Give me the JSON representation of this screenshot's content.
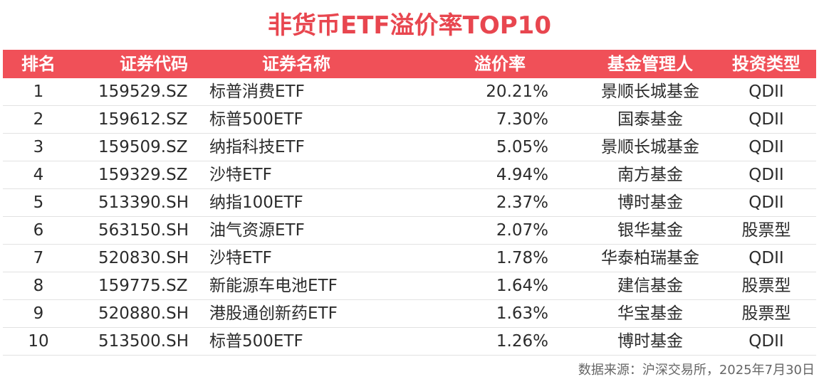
{
  "title": "非货币ETF溢价率TOP10",
  "headers": {
    "rank": "排名",
    "code": "证券代码",
    "name": "证券名称",
    "premium": "溢价率",
    "manager": "基金管理人",
    "type": "投资类型"
  },
  "rows": [
    {
      "rank": "1",
      "code": "159529.SZ",
      "name": "标普消费ETF",
      "premium": "20.21%",
      "manager": "景顺长城基金",
      "type": "QDII"
    },
    {
      "rank": "2",
      "code": "159612.SZ",
      "name": "标普500ETF",
      "premium": "7.30%",
      "manager": "国泰基金",
      "type": "QDII"
    },
    {
      "rank": "3",
      "code": "159509.SZ",
      "name": "纳指科技ETF",
      "premium": "5.05%",
      "manager": "景顺长城基金",
      "type": "QDII"
    },
    {
      "rank": "4",
      "code": "159329.SZ",
      "name": "沙特ETF",
      "premium": "4.94%",
      "manager": "南方基金",
      "type": "QDII"
    },
    {
      "rank": "5",
      "code": "513390.SH",
      "name": "纳指100ETF",
      "premium": "2.37%",
      "manager": "博时基金",
      "type": "QDII"
    },
    {
      "rank": "6",
      "code": "563150.SH",
      "name": "油气资源ETF",
      "premium": "2.07%",
      "manager": "银华基金",
      "type": "股票型"
    },
    {
      "rank": "7",
      "code": "520830.SH",
      "name": "沙特ETF",
      "premium": "1.78%",
      "manager": "华泰柏瑞基金",
      "type": "QDII"
    },
    {
      "rank": "8",
      "code": "159775.SZ",
      "name": "新能源车电池ETF",
      "premium": "1.64%",
      "manager": "建信基金",
      "type": "股票型"
    },
    {
      "rank": "9",
      "code": "520880.SH",
      "name": "港股通创新药ETF",
      "premium": "1.63%",
      "manager": "华宝基金",
      "type": "股票型"
    },
    {
      "rank": "10",
      "code": "513500.SH",
      "name": "标普500ETF",
      "premium": "1.26%",
      "manager": "博时基金",
      "type": "QDII"
    }
  ],
  "source": "数据来源：沪深交易所，2025年7月30日"
}
